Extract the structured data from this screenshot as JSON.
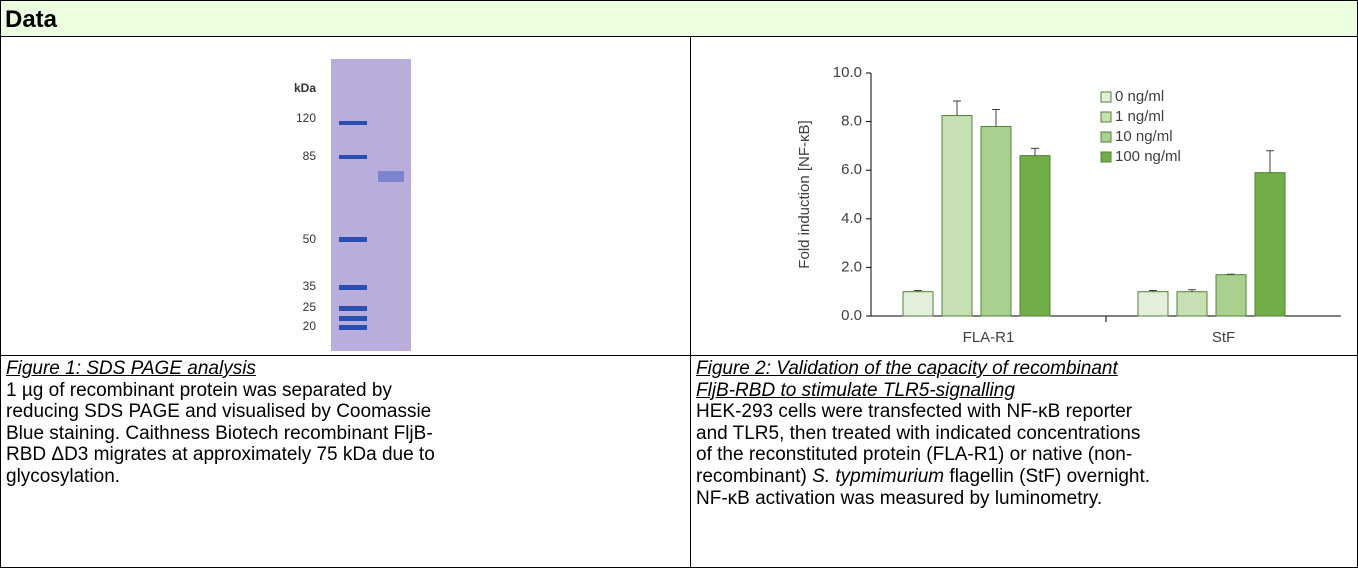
{
  "header": {
    "title": "Data"
  },
  "figure1": {
    "gel_labels": [
      "kDa",
      "120",
      "85",
      "50",
      "35",
      "25",
      "20"
    ],
    "caption_title": "Figure 1: SDS PAGE analysis",
    "caption_lines": [
      "1 µg of recombinant protein was separated by",
      "reducing SDS PAGE and visualised by Coomassie",
      "Blue staining. Caithness Biotech recombinant FljB-",
      "RBD ΔD3 migrates at approximately 75 kDa due to",
      "glycosylation."
    ]
  },
  "figure2": {
    "chart": {
      "type": "bar",
      "y_label": "Fold induction [NF-κB]",
      "categories": [
        "FLA-R1",
        "StF"
      ],
      "series": [
        {
          "name": "0 ng/ml",
          "color": "#e2efda",
          "values": [
            1.0,
            1.0
          ],
          "errors": [
            0.05,
            0.05
          ]
        },
        {
          "name": "1 ng/ml",
          "color": "#c6e0b4",
          "values": [
            8.25,
            1.0
          ],
          "errors": [
            0.6,
            0.08
          ]
        },
        {
          "name": "10 ng/ml",
          "color": "#a9d08e",
          "values": [
            7.8,
            1.7
          ],
          "errors": [
            0.7,
            0.02
          ]
        },
        {
          "name": "100 ng/ml",
          "color": "#70ad47",
          "values": [
            6.6,
            5.9
          ],
          "errors": [
            0.3,
            0.9
          ]
        }
      ],
      "ylim": [
        0,
        10
      ],
      "yticks": [
        {
          "value": 0,
          "label": "0.0"
        },
        {
          "value": 2,
          "label": "2.0"
        },
        {
          "value": 4,
          "label": "4.0"
        },
        {
          "value": 6,
          "label": "6.0"
        },
        {
          "value": 8,
          "label": "8.0"
        },
        {
          "value": 10,
          "label": "10.0"
        }
      ],
      "legend": "top-right"
    },
    "caption_title_lines": [
      "Figure 2: Validation of the capacity of recombinant",
      "FljB-RBD to stimulate TLR5-signalling"
    ],
    "caption_lines": [
      [
        {
          "text": "HEK-293 cells were transfected with NF-κB reporter"
        }
      ],
      [
        {
          "text": "and TLR5, then treated with indicated concentrations"
        }
      ],
      [
        {
          "text": "of the reconstituted protein (FLA-R1) or native (non-"
        }
      ],
      [
        {
          "text": "recombinant) "
        },
        {
          "text": "S. typmimurium",
          "italic": true
        },
        {
          "text": " flagellin (StF) overnight."
        }
      ],
      [
        {
          "text": "NF-κB activation was measured by luminometry."
        }
      ]
    ]
  }
}
